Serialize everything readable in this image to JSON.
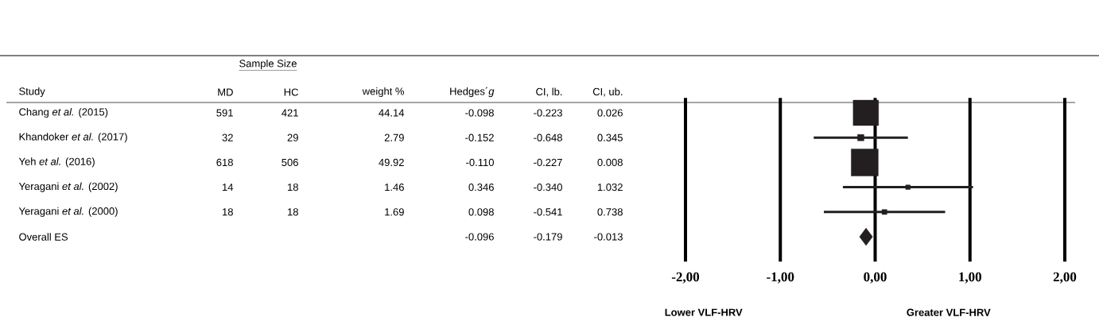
{
  "chart_data": [
    {
      "type": "other",
      "annotations": [
        "Sample Size"
      ],
      "categories": [
        "Study",
        "MD",
        "HC",
        "weight %",
        "Hedges´*g*",
        "CI, lb.",
        "CI, ub."
      ],
      "y_categories": [
        "Chang *et al.* (2015)",
        "Khandoker *et al.* (2017)",
        "Yeh *et al.* (2016)",
        "Yeragani *et al.* (2002)",
        "Yeragani *et al.* (2000)",
        "Overall ES"
      ],
      "cell_labels": [
        [
          "591",
          "421",
          "44.14",
          "-0.098",
          "-0.223",
          "0.026"
        ],
        [
          "32",
          "29",
          "2.79",
          "-0.152",
          "-0.648",
          "0.345"
        ],
        [
          "618",
          "506",
          "49.92",
          "-0.110",
          "-0.227",
          "0.008"
        ],
        [
          "14",
          "18",
          "1.46",
          "0.346",
          "-0.340",
          "1.032"
        ],
        [
          "18",
          "18",
          "1.69",
          "0.098",
          "-0.541",
          "0.738"
        ],
        [
          null,
          null,
          null,
          "-0.096",
          "-0.179",
          "-0.013"
        ]
      ]
    },
    {
      "type": "scatter",
      "orientation": "horizontal",
      "categories": [
        null,
        null,
        null,
        null,
        null,
        null
      ],
      "series": [
        {
          "marker": "square",
          "color": "#231f20",
          "values": [
            -0.098,
            -0.152,
            -0.11,
            0.346,
            0.098,
            null
          ],
          "errors": [
            [
              -0.223,
              0.026
            ],
            [
              -0.648,
              0.345
            ],
            [
              -0.227,
              0.008
            ],
            [
              -0.34,
              1.032
            ],
            [
              -0.541,
              0.738
            ],
            null
          ],
          "sizes": [
            0.884,
            0.056,
            1,
            0.029,
            0.034,
            null
          ]
        },
        {
          "marker": "diamond",
          "color": "#231f20",
          "values": [
            null,
            null,
            null,
            null,
            null,
            -0.096
          ]
        }
      ],
      "xlim": [
        -2,
        2
      ],
      "xticks": [
        {
          "value": -2,
          "label": "-2,00"
        },
        {
          "value": -1,
          "label": "-1,00"
        },
        {
          "value": 0,
          "label": "0,00"
        },
        {
          "value": 1,
          "label": "1,00"
        },
        {
          "value": 2,
          "label": "2,00"
        }
      ],
      "grid": "x",
      "tick_labels": "x",
      "annotations": [
        "Lower VLF-HRV",
        "Greater VLF-HRV"
      ]
    }
  ]
}
